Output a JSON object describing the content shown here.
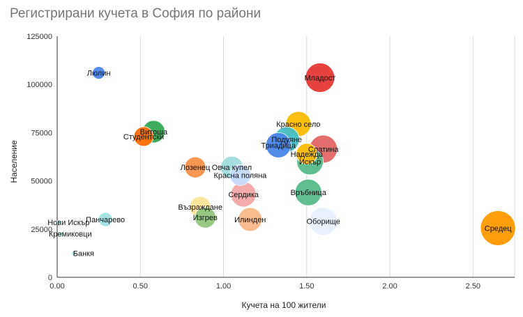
{
  "chart_data": {
    "type": "scatter",
    "variant": "bubble",
    "title": "Регистрирани кучета в София по райони",
    "xlabel": "Кучета на 100 жители",
    "ylabel": "Население",
    "xlim": [
      0,
      2.75
    ],
    "ylim": [
      0,
      125000
    ],
    "x_ticks": [
      "0.00",
      "0.50",
      "1.00",
      "1.50",
      "2.00",
      "2.50"
    ],
    "y_ticks": [
      "0",
      "25000",
      "50000",
      "75000",
      "100000",
      "125000"
    ],
    "grid": "vertical",
    "points": [
      {
        "label": "Люлин",
        "x": 0.25,
        "y": 106000,
        "size": 9,
        "color": "#4a86e8"
      },
      {
        "label": "Младост",
        "x": 1.58,
        "y": 103500,
        "size": 21,
        "color": "#e53935"
      },
      {
        "label": "Витоша",
        "x": 0.58,
        "y": 75500,
        "size": 16,
        "color": "#34a853"
      },
      {
        "label": "Студентски",
        "x": 0.52,
        "y": 73000,
        "size": 14,
        "color": "#ff6d01"
      },
      {
        "label": "Красно село",
        "x": 1.45,
        "y": 79500,
        "size": 18,
        "color": "#fbbc04"
      },
      {
        "label": "Подуяне",
        "x": 1.38,
        "y": 71500,
        "size": 18,
        "color": "#46bdc6"
      },
      {
        "label": "Триадица",
        "x": 1.33,
        "y": 68500,
        "size": 18,
        "color": "#4a86e8"
      },
      {
        "label": "Надежда",
        "x": 1.5,
        "y": 64000,
        "size": 15,
        "color": "#fbbc04"
      },
      {
        "label": "Слатина",
        "x": 1.6,
        "y": 66500,
        "size": 20,
        "color": "#e06666"
      },
      {
        "label": "Искър",
        "x": 1.52,
        "y": 60000,
        "size": 19,
        "color": "#57bb8a"
      },
      {
        "label": "Лозенец",
        "x": 0.83,
        "y": 57000,
        "size": 15,
        "color": "#f6914b"
      },
      {
        "label": "Овча купел",
        "x": 1.05,
        "y": 57000,
        "size": 16,
        "color": "#9fdcdc"
      },
      {
        "label": "Красна поляна",
        "x": 1.1,
        "y": 53000,
        "size": 15,
        "color": "#c6dafc"
      },
      {
        "label": "Сердика",
        "x": 1.12,
        "y": 43000,
        "size": 18,
        "color": "#f4a7a7"
      },
      {
        "label": "Връбница",
        "x": 1.51,
        "y": 44000,
        "size": 19,
        "color": "#57bb8a"
      },
      {
        "label": "Възраждане",
        "x": 0.86,
        "y": 36500,
        "size": 15,
        "color": "#ffe599"
      },
      {
        "label": "Изгрев",
        "x": 0.89,
        "y": 31000,
        "size": 15,
        "color": "#93c47d"
      },
      {
        "label": "Илинден",
        "x": 1.16,
        "y": 30000,
        "size": 17,
        "color": "#f9b889"
      },
      {
        "label": "Оборище",
        "x": 1.6,
        "y": 29000,
        "size": 20,
        "color": "#e8f0fe"
      },
      {
        "label": "Средец",
        "x": 2.65,
        "y": 25500,
        "size": 25,
        "color": "#ff9900"
      },
      {
        "label": "Панчарево",
        "x": 0.29,
        "y": 30000,
        "size": 10,
        "color": "#a2e2e2"
      },
      {
        "label": "Нови Искър",
        "x": 0.01,
        "y": 28500,
        "size": 3,
        "color": "#a2e2e2"
      },
      {
        "label": "Кремиковци",
        "x": 0.02,
        "y": 22500,
        "size": 3,
        "color": "#a2e2e2"
      },
      {
        "label": "Банкя",
        "x": 0.1,
        "y": 12500,
        "size": 3,
        "color": "#a2e2e2"
      }
    ]
  }
}
